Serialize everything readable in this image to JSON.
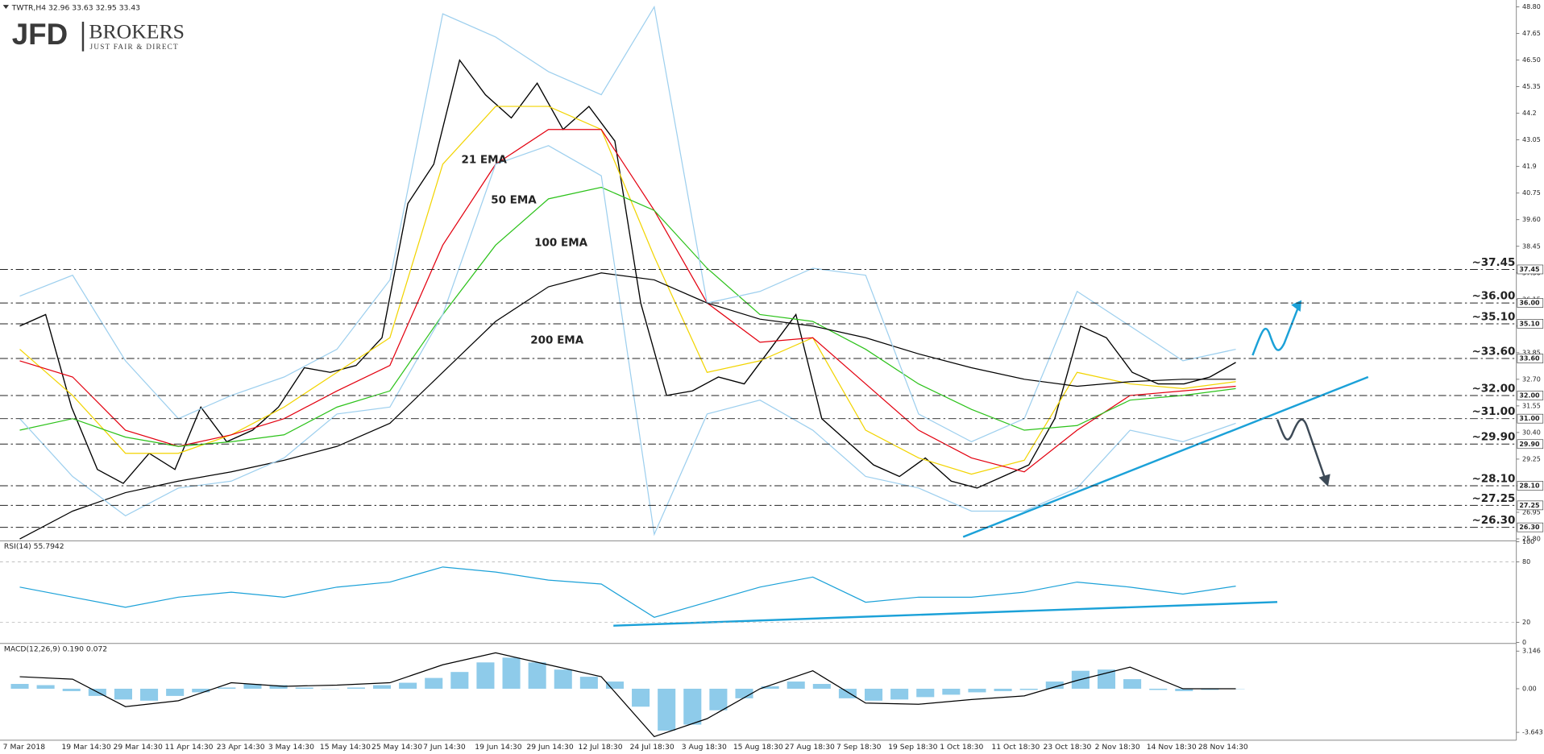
{
  "logo": {
    "name": "JFD",
    "brand": "BROKERS",
    "tagline": "JUST FAIR & DIRECT"
  },
  "date_labels": [
    "7 Mar 2018",
    "19 Mar 14:30",
    "29 Mar 14:30",
    "11 Apr 14:30",
    "23 Apr 14:30",
    "3 May 14:30",
    "15 May 14:30",
    "25 May 14:30",
    "7 Jun 14:30",
    "19 Jun 14:30",
    "29 Jun 14:30",
    "12 Jul 18:30",
    "24 Jul 18:30",
    "3 Aug 18:30",
    "15 Aug 18:30",
    "27 Aug 18:30",
    "7 Sep 18:30",
    "19 Sep 18:30",
    "1 Oct 18:30",
    "11 Oct 18:30",
    "23 Oct 18:30",
    "2 Nov 18:30",
    "14 Nov 18:30",
    "28 Nov 14:30"
  ],
  "chart_data": [
    {
      "type": "line",
      "title": "TWTR,H4  32.96 33.63 32.95 33.43",
      "ylim": [
        25.76,
        48.97
      ],
      "yticks": [
        {
          "value": 48.8,
          "label": "48.80"
        },
        47.65,
        {
          "value": 46.5,
          "label": "46.50"
        },
        45.35,
        44.2,
        43.05,
        41.9,
        40.75,
        {
          "value": 39.6,
          "label": "39.60"
        },
        38.45,
        {
          "value": 37.3,
          "label": "37.30"
        },
        36.15,
        {
          "value": 35.0,
          "label": "35.00"
        },
        33.85,
        {
          "value": 32.7,
          "label": "32.70"
        },
        31.55,
        {
          "value": 30.4,
          "label": "30.40"
        },
        29.25,
        {
          "value": 28.1,
          "label": "28.10"
        },
        26.95,
        {
          "value": 25.8,
          "label": "25.80"
        }
      ],
      "series": [
        {
          "color": "#000000",
          "values": [
            35.0,
            35.5,
            31.5,
            28.8,
            28.2,
            29.5,
            28.8,
            31.5,
            30.0,
            30.5,
            31.5,
            33.2,
            33.0,
            33.3,
            34.5,
            40.3,
            42.0,
            46.5,
            45.0,
            44.0,
            45.5,
            43.5,
            44.5,
            43.0,
            36.0,
            32.0,
            32.2,
            32.8,
            32.5,
            34.0,
            35.5,
            31.0,
            30.0,
            29.0,
            28.5,
            29.3,
            28.3,
            28.0,
            28.5,
            29.0,
            31.0,
            35.0,
            34.5,
            33.0,
            32.5,
            32.5,
            32.8,
            33.43
          ]
        },
        {
          "name": "21 EMA",
          "color": "#f2d400",
          "values": [
            34.0,
            32.0,
            29.5,
            29.5,
            30.3,
            31.5,
            33.0,
            34.5,
            42.0,
            44.5,
            44.5,
            43.5,
            38.0,
            33.0,
            33.5,
            34.5,
            30.5,
            29.3,
            28.6,
            29.2,
            33.0,
            32.5,
            32.3,
            32.6
          ]
        },
        {
          "name": "50 EMA",
          "color": "#e3000f",
          "values": [
            33.5,
            32.8,
            30.5,
            29.8,
            30.3,
            31.0,
            32.2,
            33.3,
            38.5,
            42.0,
            43.5,
            43.5,
            40.0,
            36.0,
            34.3,
            34.5,
            32.5,
            30.5,
            29.3,
            28.7,
            30.5,
            32.0,
            32.2,
            32.4
          ]
        },
        {
          "name": "100 EMA",
          "color": "#2cc21a",
          "values": [
            30.5,
            31.0,
            30.2,
            29.8,
            30.0,
            30.3,
            31.5,
            32.2,
            35.5,
            38.5,
            40.5,
            41.0,
            40.0,
            37.5,
            35.5,
            35.2,
            34.0,
            32.5,
            31.4,
            30.5,
            30.7,
            31.8,
            32.0,
            32.3
          ]
        },
        {
          "name": "200 EMA",
          "color": "#000000",
          "values": [
            25.8,
            27.0,
            27.8,
            28.3,
            28.7,
            29.2,
            29.8,
            30.8,
            33.0,
            35.2,
            36.7,
            37.3,
            37.0,
            36.0,
            35.3,
            35.0,
            34.5,
            33.8,
            33.2,
            32.7,
            32.4,
            32.6,
            32.7,
            32.7
          ]
        },
        {
          "color": "#9dcfee",
          "values": [
            36.3,
            37.2,
            33.5,
            31.0,
            32.0,
            32.8,
            34.0,
            37.0,
            48.5,
            47.5,
            46.0,
            45.0,
            48.8,
            36.0,
            36.5,
            37.5,
            37.2,
            31.2,
            30.0,
            31.0,
            36.5,
            35.0,
            33.5,
            34.0
          ]
        },
        {
          "color": "#9dcfee",
          "values": [
            31.0,
            28.5,
            26.8,
            28.0,
            28.3,
            29.3,
            31.2,
            31.5,
            35.5,
            42.0,
            42.8,
            41.5,
            26.0,
            31.2,
            31.8,
            30.5,
            28.5,
            28.0,
            27.0,
            27.0,
            28.0,
            30.5,
            30.0,
            30.8
          ]
        }
      ],
      "levels": [
        {
          "value": 37.45,
          "label": "~37.45",
          "tag": "37.45",
          "color": "#1ba1d8"
        },
        {
          "value": 36.0,
          "label": "~36.00",
          "tag": "36.00",
          "color": "#1ba1d8"
        },
        {
          "value": 35.1,
          "label": "~35.10",
          "tag": "35.10",
          "color": "#1ba1d8"
        },
        {
          "value": 33.6,
          "label": "~33.60",
          "tag": "33.60",
          "color": "#1ba1d8"
        },
        {
          "value": 32.0,
          "label": "~32.00",
          "tag": "32.00",
          "color": "#1ba1d8"
        },
        {
          "value": 31.0,
          "label": "~31.00",
          "tag": "31.00",
          "color": "#444444"
        },
        {
          "value": 29.9,
          "label": "~29.90",
          "tag": "29.90",
          "color": "#444444"
        },
        {
          "value": 28.1,
          "label": "~28.10",
          "tag": "28.10",
          "color": "#444444"
        },
        {
          "value": 27.25,
          "label": "~27.25",
          "tag": "27.25",
          "color": "#444444"
        },
        {
          "value": 26.3,
          "label": "~26.30",
          "tag": "26.30",
          "color": "#444444"
        }
      ]
    },
    {
      "type": "line",
      "title": "RSI(14) 55.7942",
      "ylim": [
        0,
        100
      ],
      "yticks": [
        100,
        80,
        20,
        0
      ],
      "grid": true,
      "series": [
        {
          "color": "#1ba1d8",
          "values": [
            55,
            45,
            35,
            45,
            50,
            45,
            55,
            60,
            75,
            70,
            62,
            58,
            25,
            40,
            55,
            65,
            40,
            45,
            45,
            50,
            60,
            55,
            48,
            56
          ]
        }
      ]
    },
    {
      "type": "bar",
      "title": "MACD(12,26,9) 0.190 0.072",
      "ylim": [
        -4.3,
        3.7
      ],
      "yticks": [
        3.146,
        {
          "value": 0,
          "label": "0.00"
        },
        -3.643
      ],
      "series": [
        {
          "type": "bar",
          "color": "#8ecbea",
          "values": [
            0.4,
            0.3,
            -0.2,
            -0.6,
            -0.9,
            -1.0,
            -0.6,
            -0.3,
            0.1,
            0.4,
            0.3,
            0.1,
            0.0,
            0.1,
            0.3,
            0.5,
            0.9,
            1.4,
            2.2,
            2.6,
            2.2,
            1.6,
            1.0,
            0.6,
            -1.5,
            -3.5,
            -3.0,
            -1.8,
            -0.8,
            0.2,
            0.6,
            0.4,
            -0.8,
            -1.0,
            -0.9,
            -0.7,
            -0.5,
            -0.3,
            -0.2,
            -0.1,
            0.6,
            1.5,
            1.6,
            0.8,
            -0.1,
            -0.2,
            -0.1,
            0.0
          ]
        },
        {
          "type": "line",
          "color": "#000000",
          "values": [
            1.0,
            0.8,
            -1.5,
            -1.0,
            0.5,
            0.2,
            0.3,
            0.5,
            2.0,
            3.0,
            2.0,
            1.0,
            -4.0,
            -2.5,
            0.0,
            1.5,
            -1.2,
            -1.3,
            -0.9,
            -0.6,
            0.7,
            1.8,
            0.0,
            0.0
          ]
        }
      ]
    }
  ]
}
